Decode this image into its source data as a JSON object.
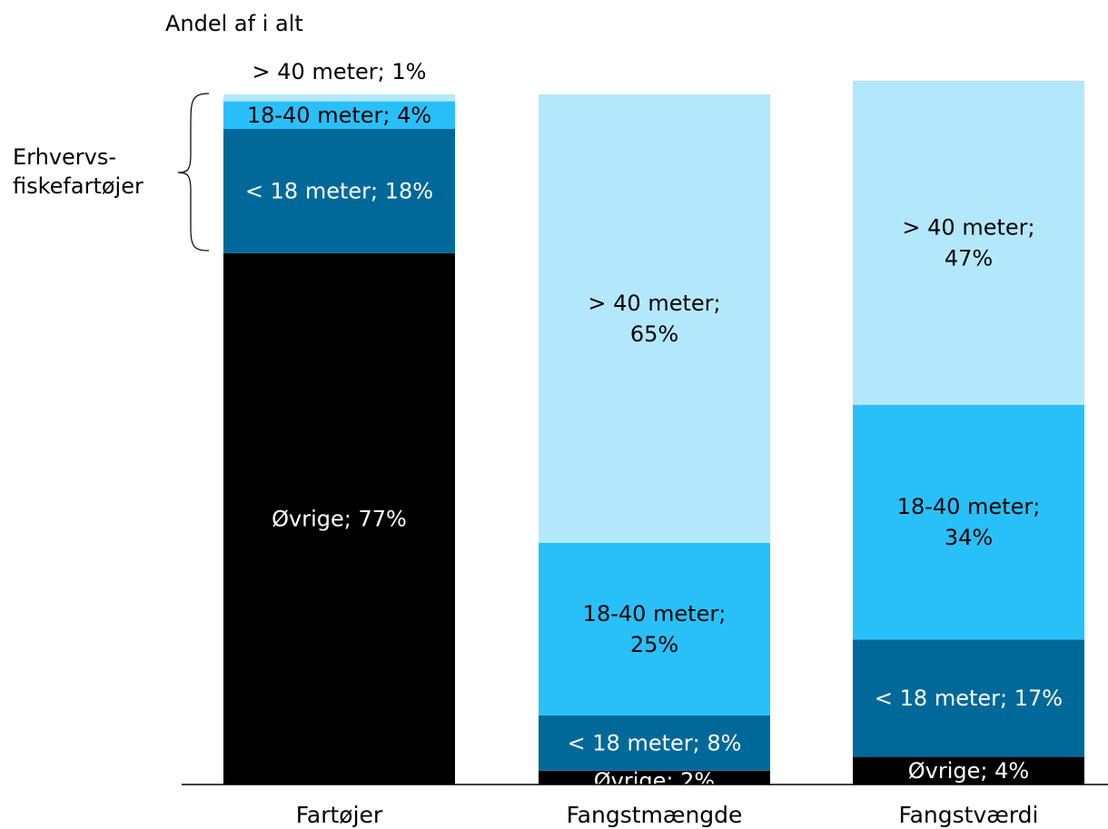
{
  "chart_data": {
    "type": "bar",
    "stacked": true,
    "ylabel": "Andel af i alt",
    "ylim": [
      0,
      100
    ],
    "categories": [
      "Fartøjer",
      "Fangstmængde",
      "Fangstværdi"
    ],
    "series": [
      {
        "name": "Øvrige",
        "values": [
          77,
          2,
          4
        ],
        "color": "#000000",
        "labels": [
          "Øvrige; 77%",
          "Øvrige; 2%",
          "Øvrige; 4%"
        ]
      },
      {
        "name": "< 18 meter",
        "values": [
          18,
          8,
          17
        ],
        "color": "#006999",
        "labels": [
          "< 18 meter; 18%",
          "< 18 meter; 8%",
          "< 18 meter; 17%"
        ]
      },
      {
        "name": "18-40 meter",
        "values": [
          4,
          25,
          34
        ],
        "color": "#29c0fa",
        "labels": [
          "18-40 meter; 4%",
          "18-40 meter;\n25%",
          "18-40 meter;\n34%"
        ]
      },
      {
        "name": "> 40 meter",
        "values": [
          1,
          65,
          47
        ],
        "color": "#b3e8fc",
        "labels": [
          "> 40 meter; 1%",
          "> 40 meter;\n65%",
          "> 40 meter;\n47%"
        ]
      }
    ],
    "annotation": {
      "text": "Erhvervs-\nfiskefartøjer",
      "spans_category": "Fartøjer",
      "spans_series": [
        "< 18 meter",
        "18-40 meter",
        "> 40 meter"
      ]
    }
  }
}
